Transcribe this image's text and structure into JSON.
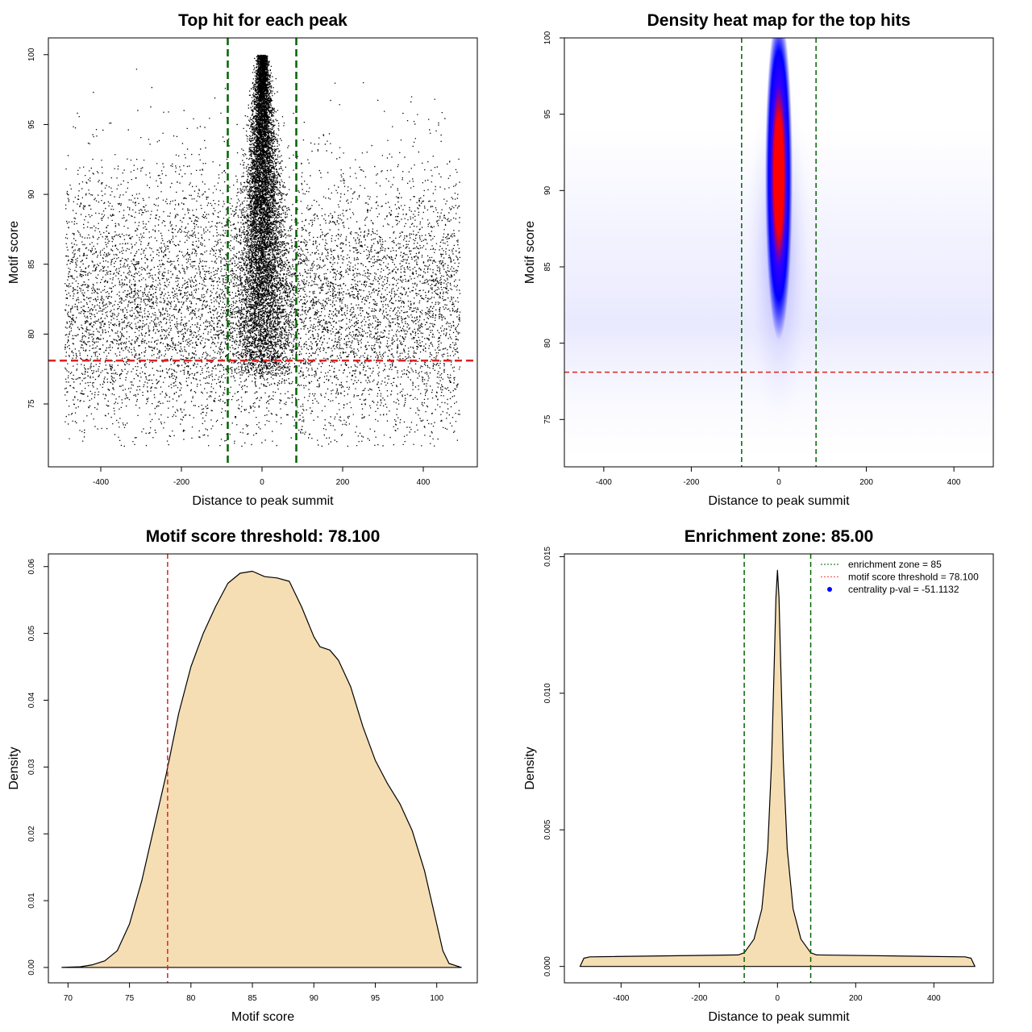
{
  "chart_data": [
    {
      "type": "scatter",
      "title": "Top hit for each peak",
      "xlabel": "Distance to peak summit",
      "ylabel": "Motif score",
      "xlim": [
        -530,
        534
      ],
      "ylim": [
        70.5,
        101.2
      ],
      "xticks": [
        -400,
        -200,
        0,
        200,
        400
      ],
      "yticks": [
        75,
        80,
        85,
        90,
        95,
        100
      ],
      "vlines": {
        "values": [
          -85,
          85
        ],
        "color": "#006400",
        "style": "dashed"
      },
      "hline": {
        "value": 78.1,
        "color": "#dd2222",
        "style": "dashed"
      },
      "point_color": "#000000"
    },
    {
      "type": "heatmap",
      "title": "Density heat map for the top hits",
      "xlabel": "Distance to peak summit",
      "ylabel": "Motif score",
      "xlim": [
        -490,
        490
      ],
      "ylim": [
        71.9,
        100
      ],
      "xticks": [
        -400,
        -200,
        0,
        200,
        400
      ],
      "yticks": [
        75,
        80,
        85,
        90,
        95,
        100
      ],
      "peak": {
        "x": 0,
        "y": 91
      },
      "colors": [
        "#ffffff",
        "#0000ff",
        "#ff0000"
      ],
      "vlines": {
        "values": [
          -85,
          85
        ],
        "color": "#006400",
        "style": "dashed"
      },
      "hline": {
        "value": 78.1,
        "color": "#dd2222",
        "style": "dashed"
      }
    },
    {
      "type": "area",
      "title": "Motif score threshold: 78.100",
      "xlabel": "Motif score",
      "ylabel": "Density",
      "xlim": [
        68.4,
        103.3
      ],
      "ylim": [
        -0.0023,
        0.0619
      ],
      "xticks": [
        70,
        75,
        80,
        85,
        90,
        95,
        100
      ],
      "yticks": [
        "0.00",
        "0.01",
        "0.02",
        "0.03",
        "0.04",
        "0.05",
        "0.06"
      ],
      "fill": "#f5deb3",
      "x": [
        69.5,
        71,
        72,
        73,
        74,
        75,
        76,
        77,
        78,
        79,
        80,
        81,
        82,
        83,
        84,
        85,
        86,
        87,
        88,
        89,
        90,
        90.5,
        91.3,
        92,
        93,
        94,
        95,
        96,
        97,
        97.5,
        98,
        99,
        100,
        100.5,
        101,
        102
      ],
      "y": [
        0,
        0.0001,
        0.0004,
        0.001,
        0.0025,
        0.0065,
        0.013,
        0.021,
        0.029,
        0.038,
        0.045,
        0.05,
        0.054,
        0.0575,
        0.059,
        0.0593,
        0.0585,
        0.0583,
        0.0578,
        0.054,
        0.0495,
        0.048,
        0.0475,
        0.046,
        0.042,
        0.036,
        0.031,
        0.0275,
        0.0245,
        0.0225,
        0.0205,
        0.0145,
        0.0065,
        0.0025,
        0.0006,
        0
      ],
      "vline": {
        "value": 78.1,
        "color": "#dd2222",
        "style": "dashed"
      }
    },
    {
      "type": "area",
      "title": "Enrichment zone: 85.00",
      "xlabel": "Distance to peak summit",
      "ylabel": "Density",
      "xlim": [
        -545,
        552
      ],
      "ylim": [
        -0.0006,
        0.0151
      ],
      "xticks": [
        -400,
        -200,
        0,
        200,
        400
      ],
      "yticks": [
        "0.000",
        "0.005",
        "0.010",
        "0.015"
      ],
      "fill": "#f5deb3",
      "x": [
        -505,
        -495,
        -480,
        -100,
        -85,
        -60,
        -40,
        -25,
        -15,
        -8,
        -4,
        0,
        4,
        8,
        15,
        25,
        40,
        60,
        85,
        100,
        480,
        495,
        505
      ],
      "y": [
        0,
        0.0003,
        0.00035,
        0.00042,
        0.0005,
        0.001,
        0.0021,
        0.0043,
        0.0075,
        0.0112,
        0.0135,
        0.0145,
        0.0135,
        0.0112,
        0.0075,
        0.0043,
        0.0021,
        0.001,
        0.0005,
        0.00042,
        0.00035,
        0.0003,
        0
      ],
      "vlines": {
        "values": [
          -85,
          85
        ],
        "color": "#006400",
        "style": "dashed"
      },
      "legend": {
        "position": "top-right",
        "entries": [
          {
            "label": "enrichment zone = 85",
            "color": "#006400",
            "symbol": "dotted-line"
          },
          {
            "label": "motif score threshold = 78.100",
            "color": "#ff4444",
            "symbol": "dotted-line"
          },
          {
            "label": "centrality p-val = -51.1132",
            "color": "#0000ff",
            "symbol": "point"
          }
        ]
      }
    }
  ]
}
